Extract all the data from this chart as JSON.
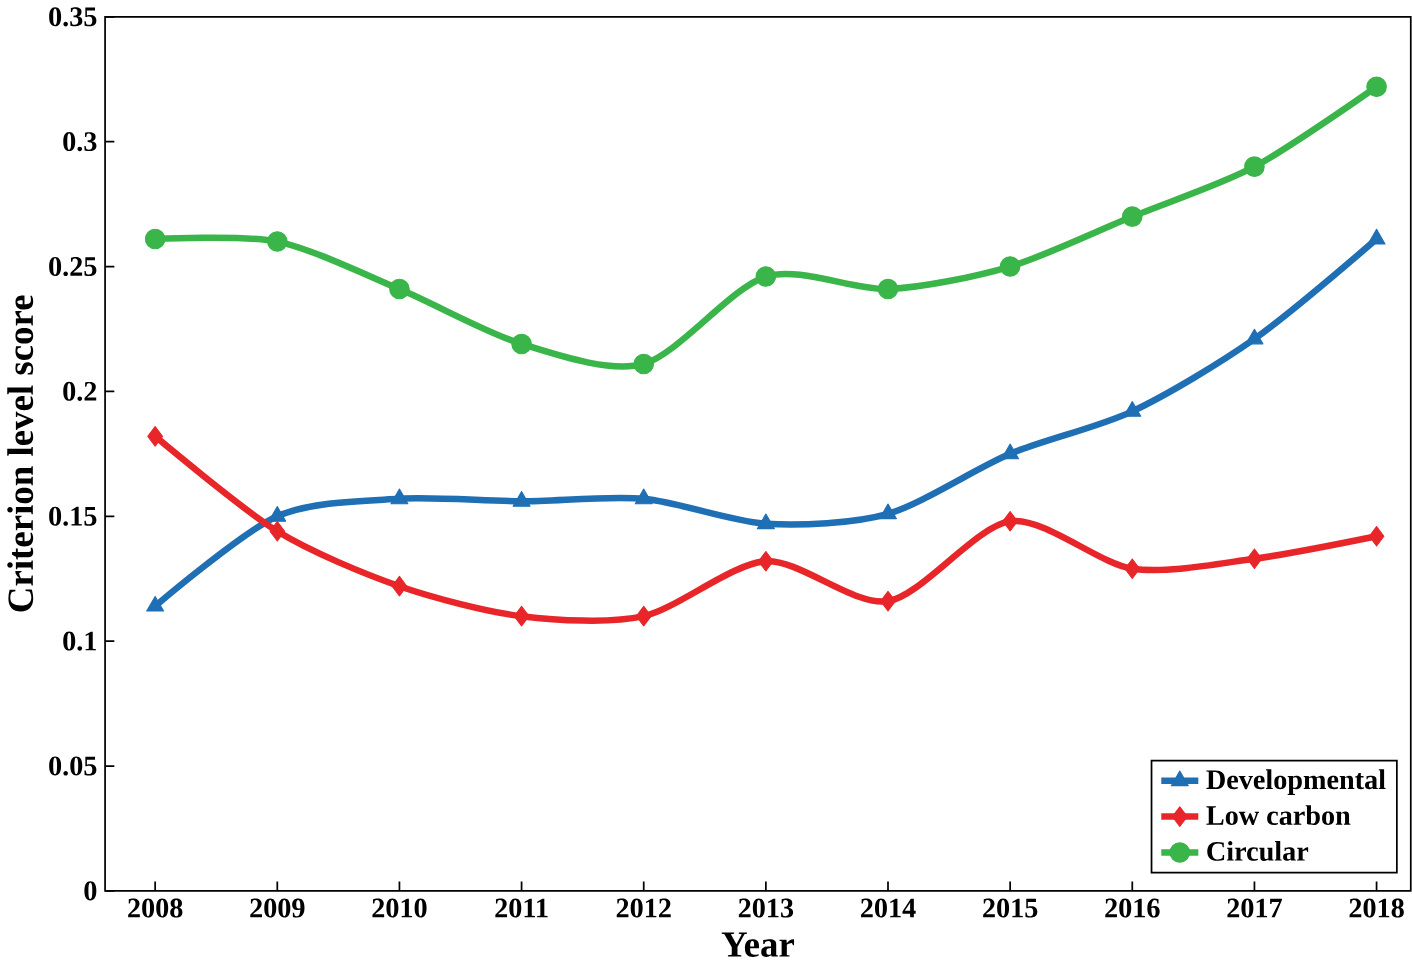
{
  "chart_data": {
    "type": "line",
    "xlabel": "Year",
    "ylabel": "Criterion level score",
    "categories": [
      "2008",
      "2009",
      "2010",
      "2011",
      "2012",
      "2013",
      "2014",
      "2015",
      "2016",
      "2017",
      "2018"
    ],
    "series": [
      {
        "name": "Developmental",
        "color": "#1f6fb5",
        "marker": "triangle",
        "values": [
          0.114,
          0.15,
          0.157,
          0.156,
          0.157,
          0.147,
          0.151,
          0.175,
          0.192,
          0.221,
          0.261
        ]
      },
      {
        "name": "Low carbon",
        "color": "#e8262a",
        "marker": "diamond",
        "values": [
          0.182,
          0.144,
          0.122,
          0.11,
          0.11,
          0.132,
          0.116,
          0.148,
          0.129,
          0.133,
          0.142
        ]
      },
      {
        "name": "Circular",
        "color": "#3ab54a",
        "marker": "circle",
        "values": [
          0.261,
          0.26,
          0.241,
          0.219,
          0.211,
          0.246,
          0.241,
          0.25,
          0.27,
          0.29,
          0.322
        ]
      }
    ],
    "ylim": [
      0,
      0.35
    ],
    "yticks": [
      0,
      0.05,
      0.1,
      0.15,
      0.2,
      0.25,
      0.3,
      0.35
    ],
    "legend": "bottom right",
    "grid": false
  }
}
